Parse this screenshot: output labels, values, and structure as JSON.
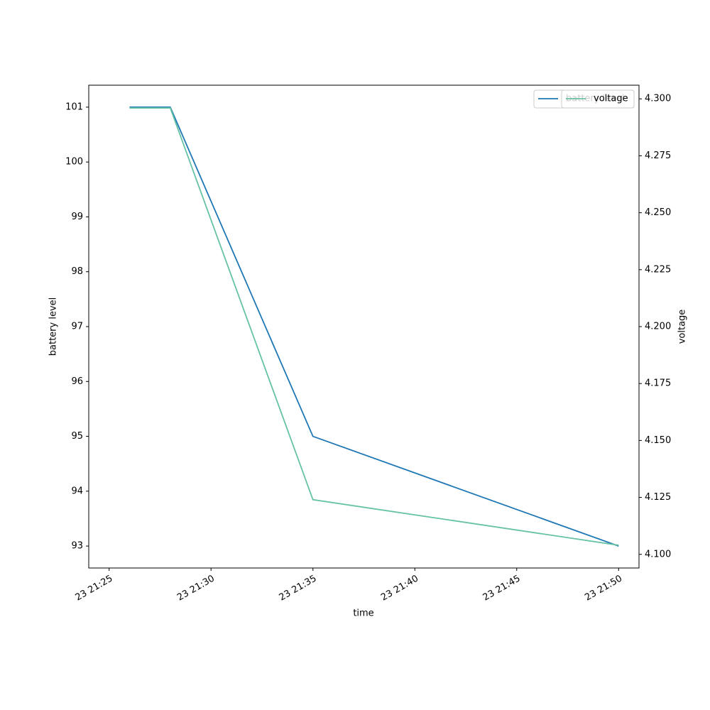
{
  "chart_data": {
    "type": "line",
    "x_label": "time",
    "y_label": "battery level",
    "y2_label": "voltage",
    "x": [
      "23 21:26",
      "23 21:28",
      "23 21:35",
      "23 21:50"
    ],
    "xlim": [
      "23 21:24",
      "23 21:51"
    ],
    "xticks": [
      "23 21:25",
      "23 21:30",
      "23 21:35",
      "23 21:40",
      "23 21:45",
      "23 21:50"
    ],
    "ylim": [
      92.6,
      101.4
    ],
    "yticks": [
      93,
      94,
      95,
      96,
      97,
      98,
      99,
      100,
      101
    ],
    "y2lim": [
      4.094,
      4.306
    ],
    "y2ticks": [
      {
        "value": 4.1,
        "label": "4.100"
      },
      4.125,
      {
        "value": 4.15,
        "label": "4.150"
      },
      4.175,
      {
        "value": 4.2,
        "label": "4.200"
      },
      4.225,
      {
        "value": 4.25,
        "label": "4.250"
      },
      4.275,
      {
        "value": 4.3,
        "label": "4.300"
      }
    ],
    "legend": "upper right",
    "series": [
      {
        "name": "battery level",
        "color": "#1f77b4",
        "values": [
          101,
          101,
          95,
          93
        ]
      },
      {
        "name": "voltage",
        "color": "#66c2a5",
        "axis": "y2",
        "values": [
          4.296,
          4.296,
          4.124,
          4.104
        ]
      }
    ]
  }
}
